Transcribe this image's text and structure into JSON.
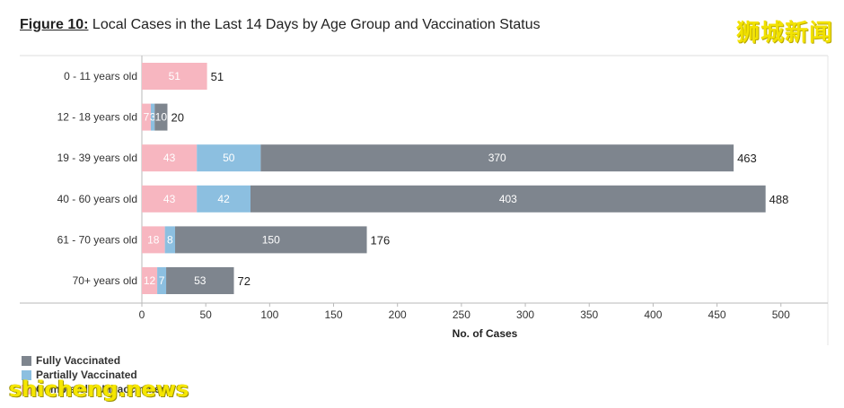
{
  "title": {
    "label": "Figure 10:",
    "text": "Local Cases in the Last 14 Days by Age Group and Vaccination Status"
  },
  "watermarks": {
    "top": "狮城新闻",
    "bottom": "shicheng.news"
  },
  "colors": {
    "unvaccinated": "#f7b6c0",
    "partial": "#8cbfe0",
    "fully": "#7e858e",
    "axis": "#b9b9b9"
  },
  "chart_data": {
    "type": "bar",
    "orientation": "horizontal",
    "stacked": true,
    "categories": [
      "0 - 11 years old",
      "12 - 18 years old",
      "19 - 39 years old",
      "40 - 60 years old",
      "61 - 70 years old",
      "70+ years old"
    ],
    "series": [
      {
        "name": "Completely Unvaccinated",
        "key": "unvaccinated",
        "values": [
          51,
          7,
          43,
          43,
          18,
          12
        ]
      },
      {
        "name": "Partially Vaccinated",
        "key": "partial",
        "values": [
          0,
          3,
          50,
          42,
          8,
          7
        ]
      },
      {
        "name": "Fully Vaccinated",
        "key": "fully",
        "values": [
          0,
          10,
          370,
          403,
          150,
          53
        ]
      }
    ],
    "segment_labels": [
      [
        "51",
        "",
        ""
      ],
      [
        "7",
        "3",
        "10"
      ],
      [
        "43",
        "50",
        "370"
      ],
      [
        "43",
        "42",
        "403"
      ],
      [
        "18",
        "8",
        "150"
      ],
      [
        "12",
        "7",
        "53"
      ]
    ],
    "totals": [
      51,
      20,
      463,
      488,
      176,
      72
    ],
    "xlabel": "No. of Cases",
    "ylabel": "",
    "xlim": [
      0,
      530
    ],
    "xticks": [
      0,
      50,
      100,
      150,
      200,
      250,
      300,
      350,
      400,
      450,
      500
    ],
    "grid": false,
    "legend": {
      "position": "bottom-left",
      "entries": [
        "Fully Vaccinated",
        "Partially Vaccinated",
        "Completely Unvaccinated"
      ]
    }
  }
}
